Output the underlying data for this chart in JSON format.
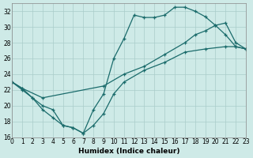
{
  "xlabel": "Humidex (Indice chaleur)",
  "bg_color": "#ceeae7",
  "grid_color": "#aaccca",
  "line_color": "#1a6b6b",
  "xlim": [
    0,
    23
  ],
  "ylim": [
    16,
    33
  ],
  "xticks": [
    0,
    1,
    2,
    3,
    4,
    5,
    6,
    7,
    8,
    9,
    10,
    11,
    12,
    13,
    14,
    15,
    16,
    17,
    18,
    19,
    20,
    21,
    22,
    23
  ],
  "yticks": [
    16,
    18,
    20,
    22,
    24,
    26,
    28,
    30,
    32
  ],
  "series1_x": [
    0,
    1,
    2,
    3,
    4,
    5,
    6,
    7,
    8,
    9,
    10,
    11,
    12,
    13,
    14,
    15,
    16,
    17,
    18,
    19,
    20,
    21,
    22,
    23
  ],
  "series1_y": [
    23,
    22,
    21,
    20,
    19.5,
    17.5,
    17.2,
    16.5,
    19.5,
    21.5,
    26,
    28.5,
    31.5,
    31.2,
    31.2,
    31.5,
    32.5,
    32.5,
    32.0,
    31.3,
    30.2,
    29,
    27.5,
    27.2
  ],
  "series2_x": [
    0,
    1,
    3,
    9,
    11,
    13,
    15,
    17,
    18,
    19,
    20,
    21,
    22,
    23
  ],
  "series2_y": [
    23,
    22.2,
    21,
    22.5,
    24.0,
    25.0,
    26.5,
    28.0,
    29.0,
    29.5,
    30.2,
    30.5,
    28.0,
    27.2
  ],
  "series3_x": [
    0,
    1,
    2,
    3,
    4,
    5,
    6,
    7,
    8,
    9,
    10,
    11,
    13,
    15,
    17,
    19,
    21,
    22,
    23
  ],
  "series3_y": [
    23,
    22.2,
    21,
    19.5,
    18.5,
    17.5,
    17.2,
    16.5,
    17.5,
    19.0,
    21.5,
    23.0,
    24.5,
    25.5,
    26.8,
    27.2,
    27.5,
    27.5,
    27.2
  ]
}
